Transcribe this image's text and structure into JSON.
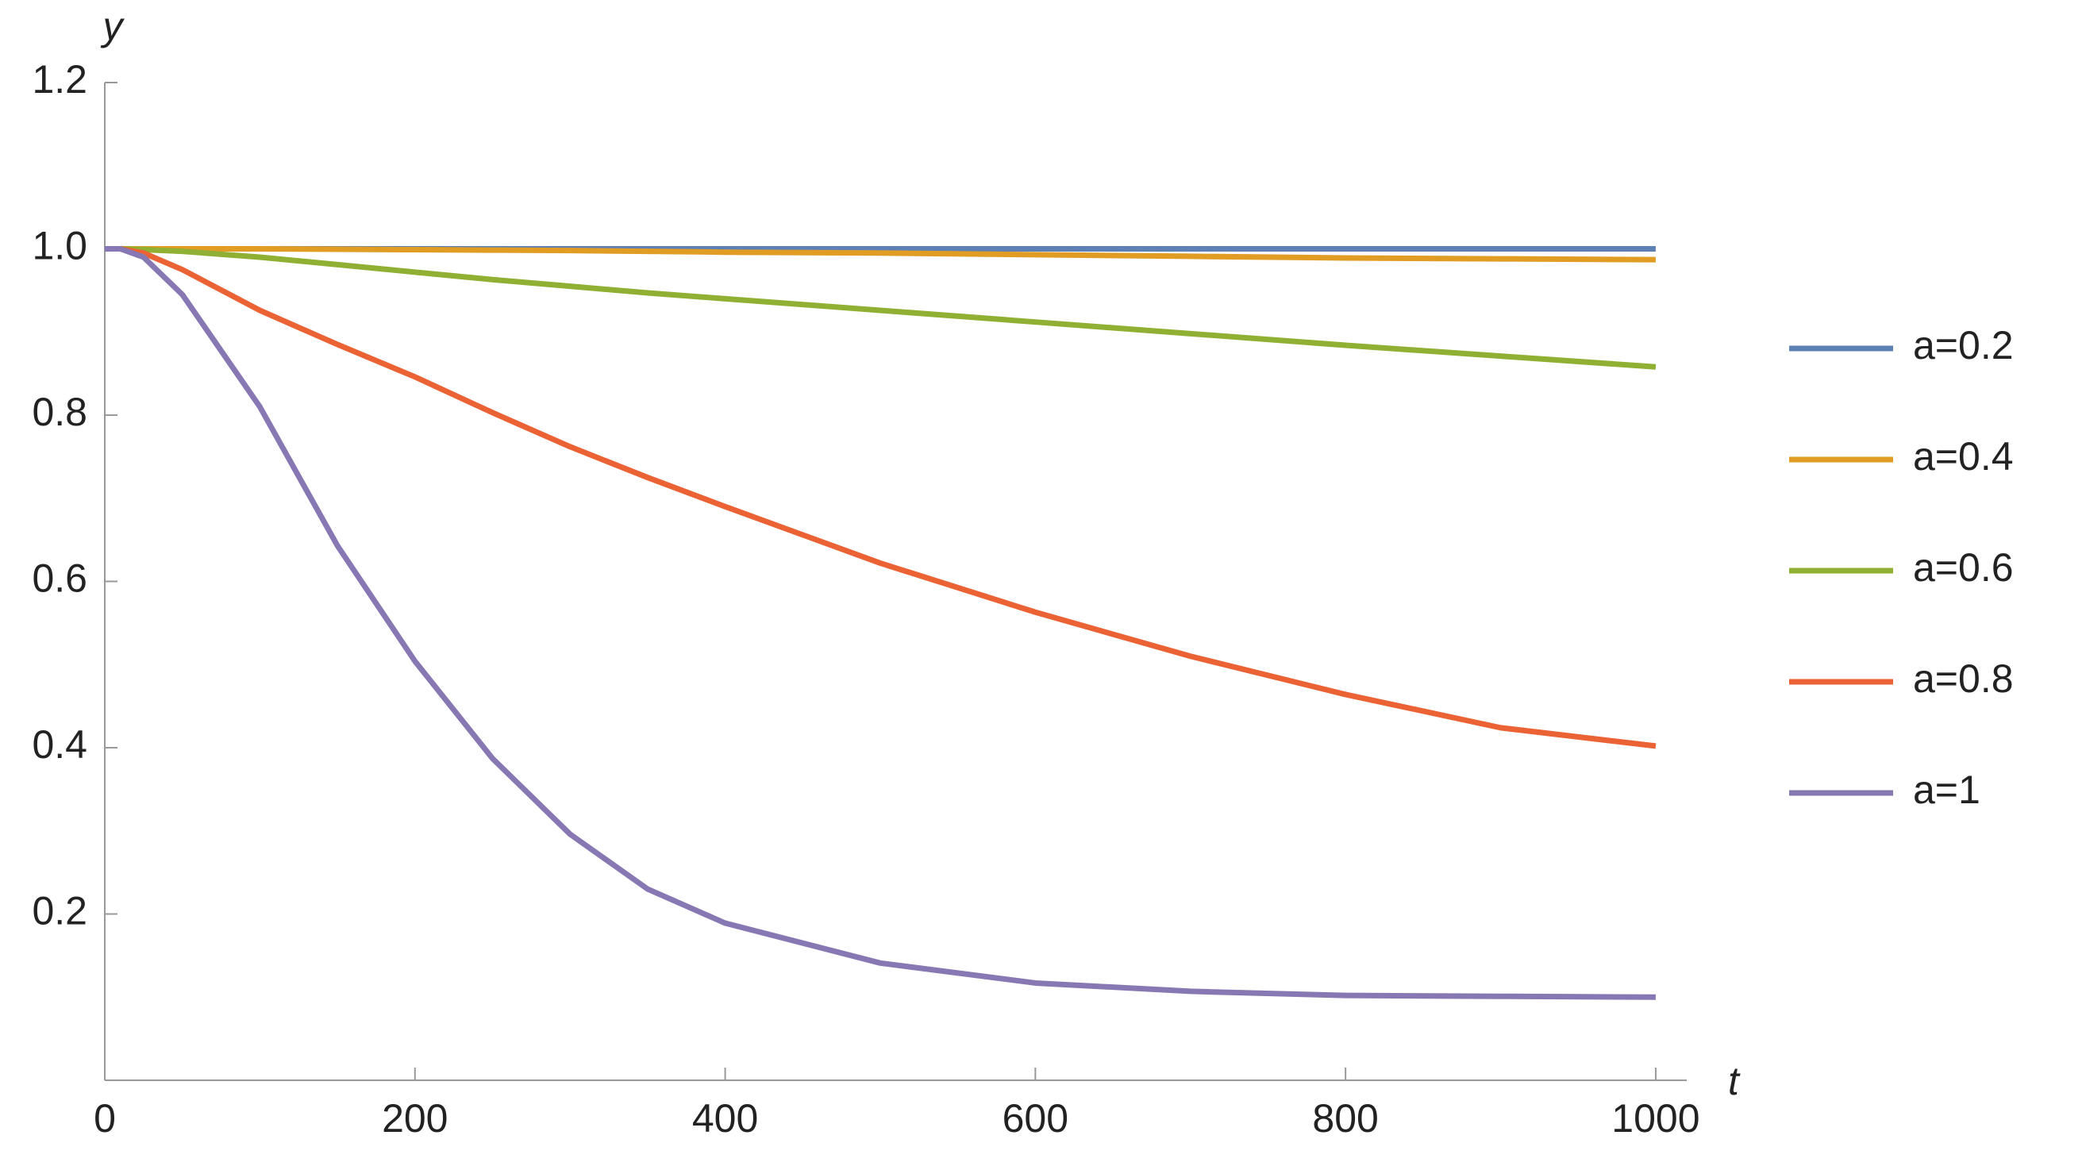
{
  "chart_data": {
    "type": "line",
    "x_label": "t",
    "y_label": "y",
    "x": [
      0,
      10,
      25,
      50,
      100,
      150,
      200,
      250,
      300,
      350,
      400,
      500,
      600,
      700,
      800,
      900,
      1000
    ],
    "series": [
      {
        "name": "a=0.2",
        "color": "#5e81b5",
        "values": [
          1,
          1,
          1,
          1,
          1,
          1,
          1,
          1,
          1,
          1,
          1,
          1,
          1,
          1,
          1,
          1,
          1
        ]
      },
      {
        "name": "a=0.4",
        "color": "#e19c24",
        "values": [
          1,
          1,
          1,
          1,
          1,
          0.9995,
          0.999,
          0.9985,
          0.998,
          0.997,
          0.996,
          0.995,
          0.993,
          0.991,
          0.989,
          0.988,
          0.987
        ]
      },
      {
        "name": "a=0.6",
        "color": "#8fb032",
        "values": [
          1,
          1,
          0.999,
          0.997,
          0.99,
          0.981,
          0.972,
          0.963,
          0.955,
          0.947,
          0.94,
          0.926,
          0.912,
          0.898,
          0.884,
          0.871,
          0.858
        ]
      },
      {
        "name": "a=0.8",
        "color": "#eb6235",
        "values": [
          1,
          1,
          0.995,
          0.975,
          0.926,
          0.885,
          0.846,
          0.803,
          0.762,
          0.725,
          0.69,
          0.622,
          0.563,
          0.51,
          0.464,
          0.424,
          0.402
        ]
      },
      {
        "name": "a=1",
        "color": "#8778b3",
        "values": [
          1,
          1,
          0.99,
          0.945,
          0.81,
          0.643,
          0.504,
          0.387,
          0.296,
          0.23,
          0.189,
          0.141,
          0.117,
          0.107,
          0.102,
          0.101,
          0.1
        ]
      }
    ],
    "xlim": [
      0,
      1020
    ],
    "ylim": [
      0,
      1.2
    ],
    "xticks": [
      0,
      200,
      400,
      600,
      800,
      1000
    ],
    "yticks": [
      0.2,
      0.4,
      0.6,
      0.8,
      {
        "value": 1,
        "label": "1.0"
      },
      1.2
    ],
    "grid": false,
    "legend": "right"
  }
}
